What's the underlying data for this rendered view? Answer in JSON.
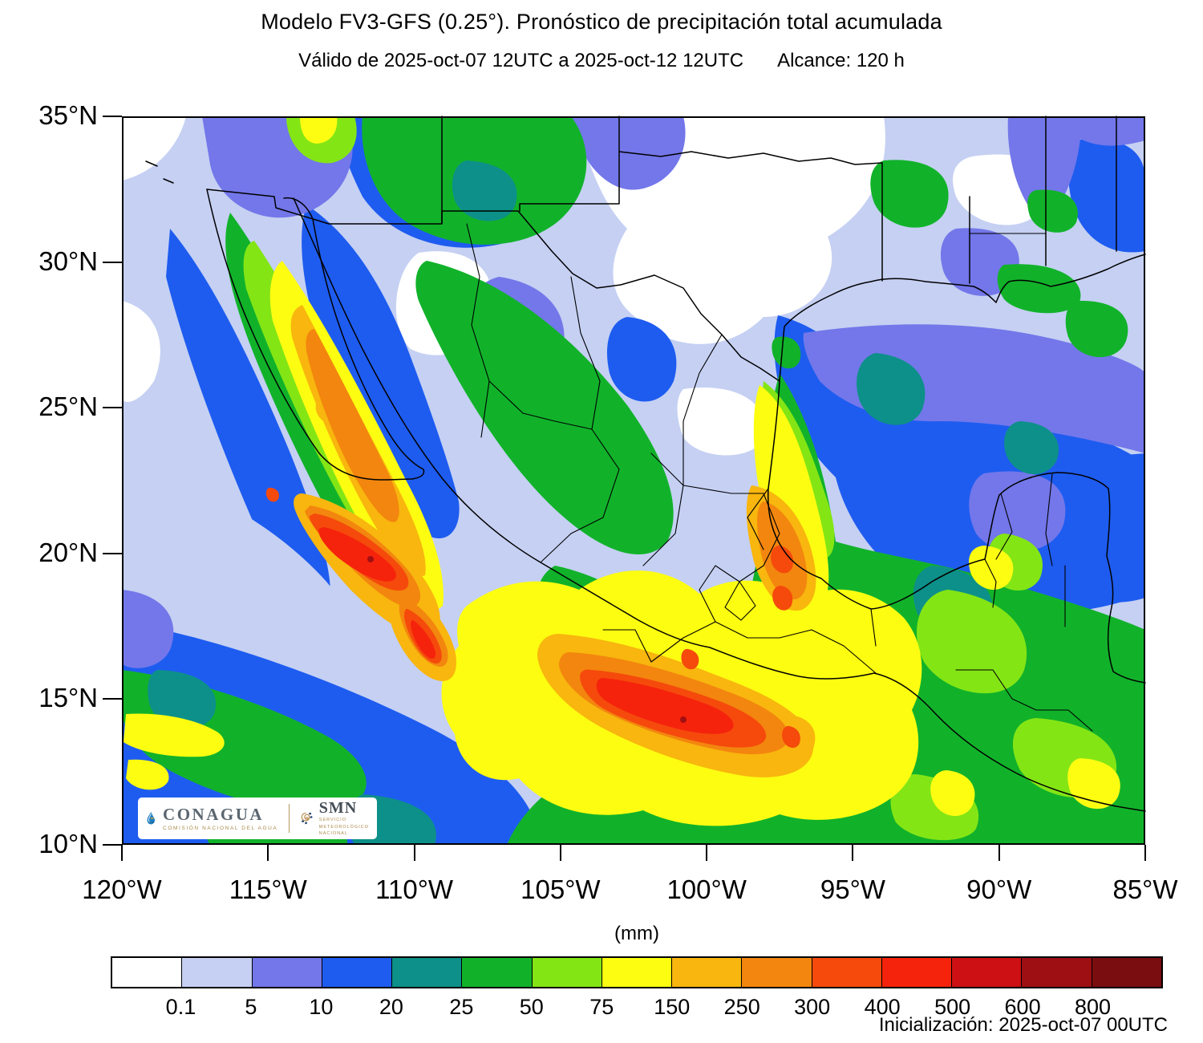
{
  "header": {
    "title": "Modelo FV3-GFS (0.25°). Pronóstico de precipitación total acumulada",
    "valid": "Válido de 2025-oct-07 12UTC a 2025-oct-12 12UTC",
    "reach": "Alcance: 120 h"
  },
  "footer": {
    "init": "Inicialización: 2025-oct-07 00UTC"
  },
  "colorbar": {
    "units": "(mm)"
  },
  "logos": {
    "conagua": "CONAGUA",
    "conagua_sub": "COMISIÓN NACIONAL DEL AGUA",
    "smn": "SMN",
    "smn_sub1": "SERVICIO",
    "smn_sub2": "METEOROLÓGICO",
    "smn_sub3": "NACIONAL"
  },
  "chart_data": {
    "type": "heatmap",
    "subtype": "filled-contour precipitation map",
    "title": "Modelo FV3-GFS (0.25°). Pronóstico de precipitación total acumulada",
    "valid_period": "2025-oct-07 12UTC a 2025-oct-12 12UTC",
    "forecast_range_hours": 120,
    "initialization": "2025-oct-07 00UTC",
    "units": "mm",
    "region": "México y sur de EE.UU.",
    "lat_range_deg_n": [
      10,
      35
    ],
    "lon_range_deg_w": [
      120,
      85
    ],
    "lat_tick_labels": [
      "35°N",
      "30°N",
      "25°N",
      "20°N",
      "15°N",
      "10°N"
    ],
    "lon_tick_labels": [
      "120°W",
      "115°W",
      "110°W",
      "105°W",
      "100°W",
      "95°W",
      "90°W",
      "85°W"
    ],
    "scale": {
      "tick_labels": [
        "0.1",
        "5",
        "10",
        "20",
        "25",
        "50",
        "75",
        "150",
        "250",
        "300",
        "400",
        "500",
        "600",
        "800"
      ],
      "levels_mm": [
        0.1,
        5,
        10,
        20,
        25,
        50,
        75,
        150,
        250,
        300,
        400,
        500,
        600,
        800
      ],
      "colors": [
        "#ffffff",
        "#c5d0f3",
        "#7377e9",
        "#1e5cf0",
        "#0d9089",
        "#11b22a",
        "#84e515",
        "#fdfd11",
        "#f8b60e",
        "#f3860e",
        "#f54a0c",
        "#f5230c",
        "#cc1013",
        "#9d0f12",
        "#7a0d10"
      ]
    },
    "notes": "Máximos >400-500 mm (rojos) sobre la costa de Sinaloa-Nayarit (~111°W, 20°N) y sobre Guerrero-Oaxaca (~100°W, 13-16°N); franja amarilla-naranja a lo largo del Pacífico mexicano; 0.1-10 mm sobre Texas y norte de México; 20-50 mm en el Golfo de México."
  }
}
